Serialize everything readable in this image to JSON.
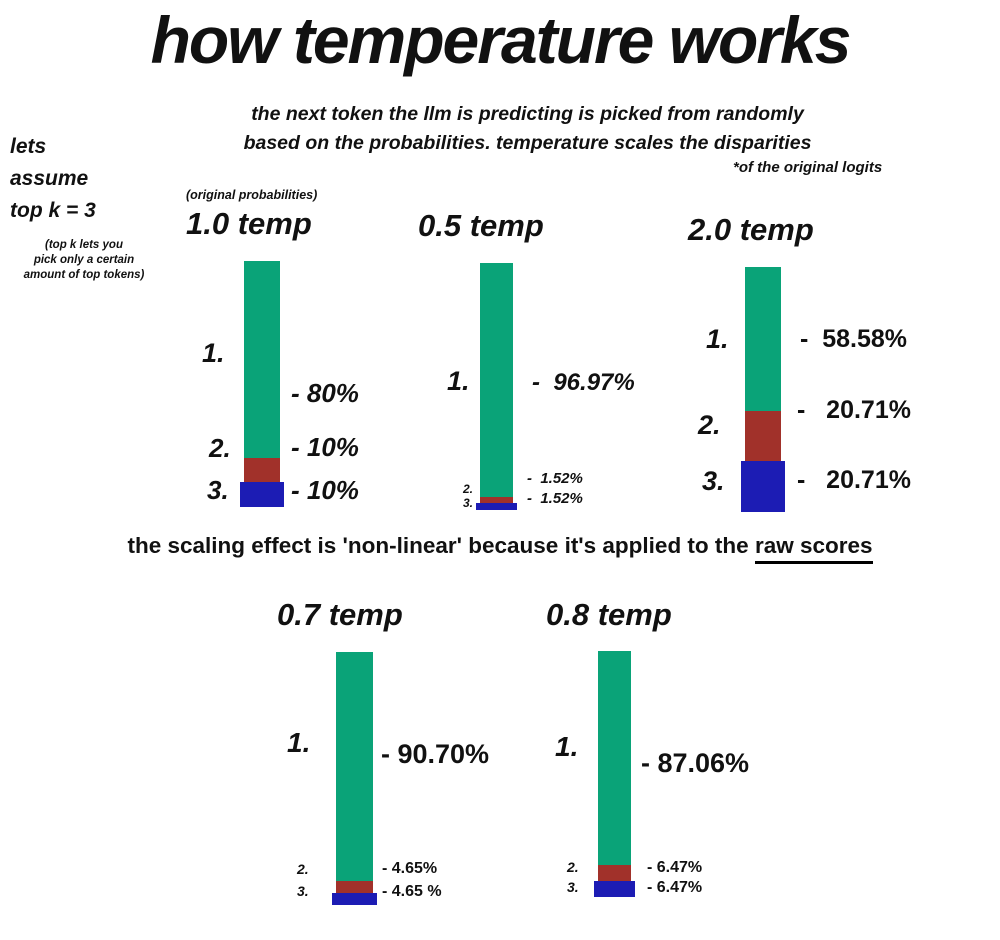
{
  "page": {
    "title": "how temperature works",
    "subtitle_line1": "the next token the llm is predicting is picked from randomly",
    "subtitle_line2": "based on the probabilities. temperature scales the disparities",
    "logits_footnote": "*of the original logits",
    "assume_line1": "lets",
    "assume_line2": "assume",
    "assume_line3": "top k = 3",
    "topk_note": "(top k lets you\npick only a certain\namount of top tokens)",
    "original_probabilities_label": "(original probabilities)",
    "scaling_prefix": "the scaling effect is 'non-linear' because it's applied to the ",
    "scaling_underlined": "raw scores"
  },
  "chart_data": {
    "type": "bar",
    "description": "stacked probability bars of the top-3 tokens at different temperatures",
    "rank_labels": [
      "1.",
      "2.",
      "3."
    ],
    "colors": [
      "#0aa378",
      "#a1312a",
      "#1c1cb4"
    ],
    "ylim": [
      0,
      100
    ],
    "charts": [
      {
        "title": "1.0 temp",
        "values": [
          80,
          10,
          10
        ],
        "value_labels": [
          "- 80%",
          "- 10%",
          "- 10%"
        ]
      },
      {
        "title": "0.5 temp",
        "values": [
          96.97,
          1.52,
          1.52
        ],
        "value_labels": [
          "-  96.97%",
          "-  1.52%",
          "-  1.52%"
        ]
      },
      {
        "title": "2.0 temp",
        "values": [
          58.58,
          20.71,
          20.71
        ],
        "value_labels": [
          "-  58.58%",
          "-   20.71%",
          "-   20.71%"
        ]
      },
      {
        "title": "0.7 temp",
        "values": [
          90.7,
          4.65,
          4.65
        ],
        "value_labels": [
          "- 90.70%",
          "- 4.65%",
          "- 4.65 %"
        ]
      },
      {
        "title": "0.8 temp",
        "values": [
          87.06,
          6.47,
          6.47
        ],
        "value_labels": [
          "- 87.06%",
          "- 6.47%",
          "- 6.47%"
        ]
      }
    ]
  }
}
